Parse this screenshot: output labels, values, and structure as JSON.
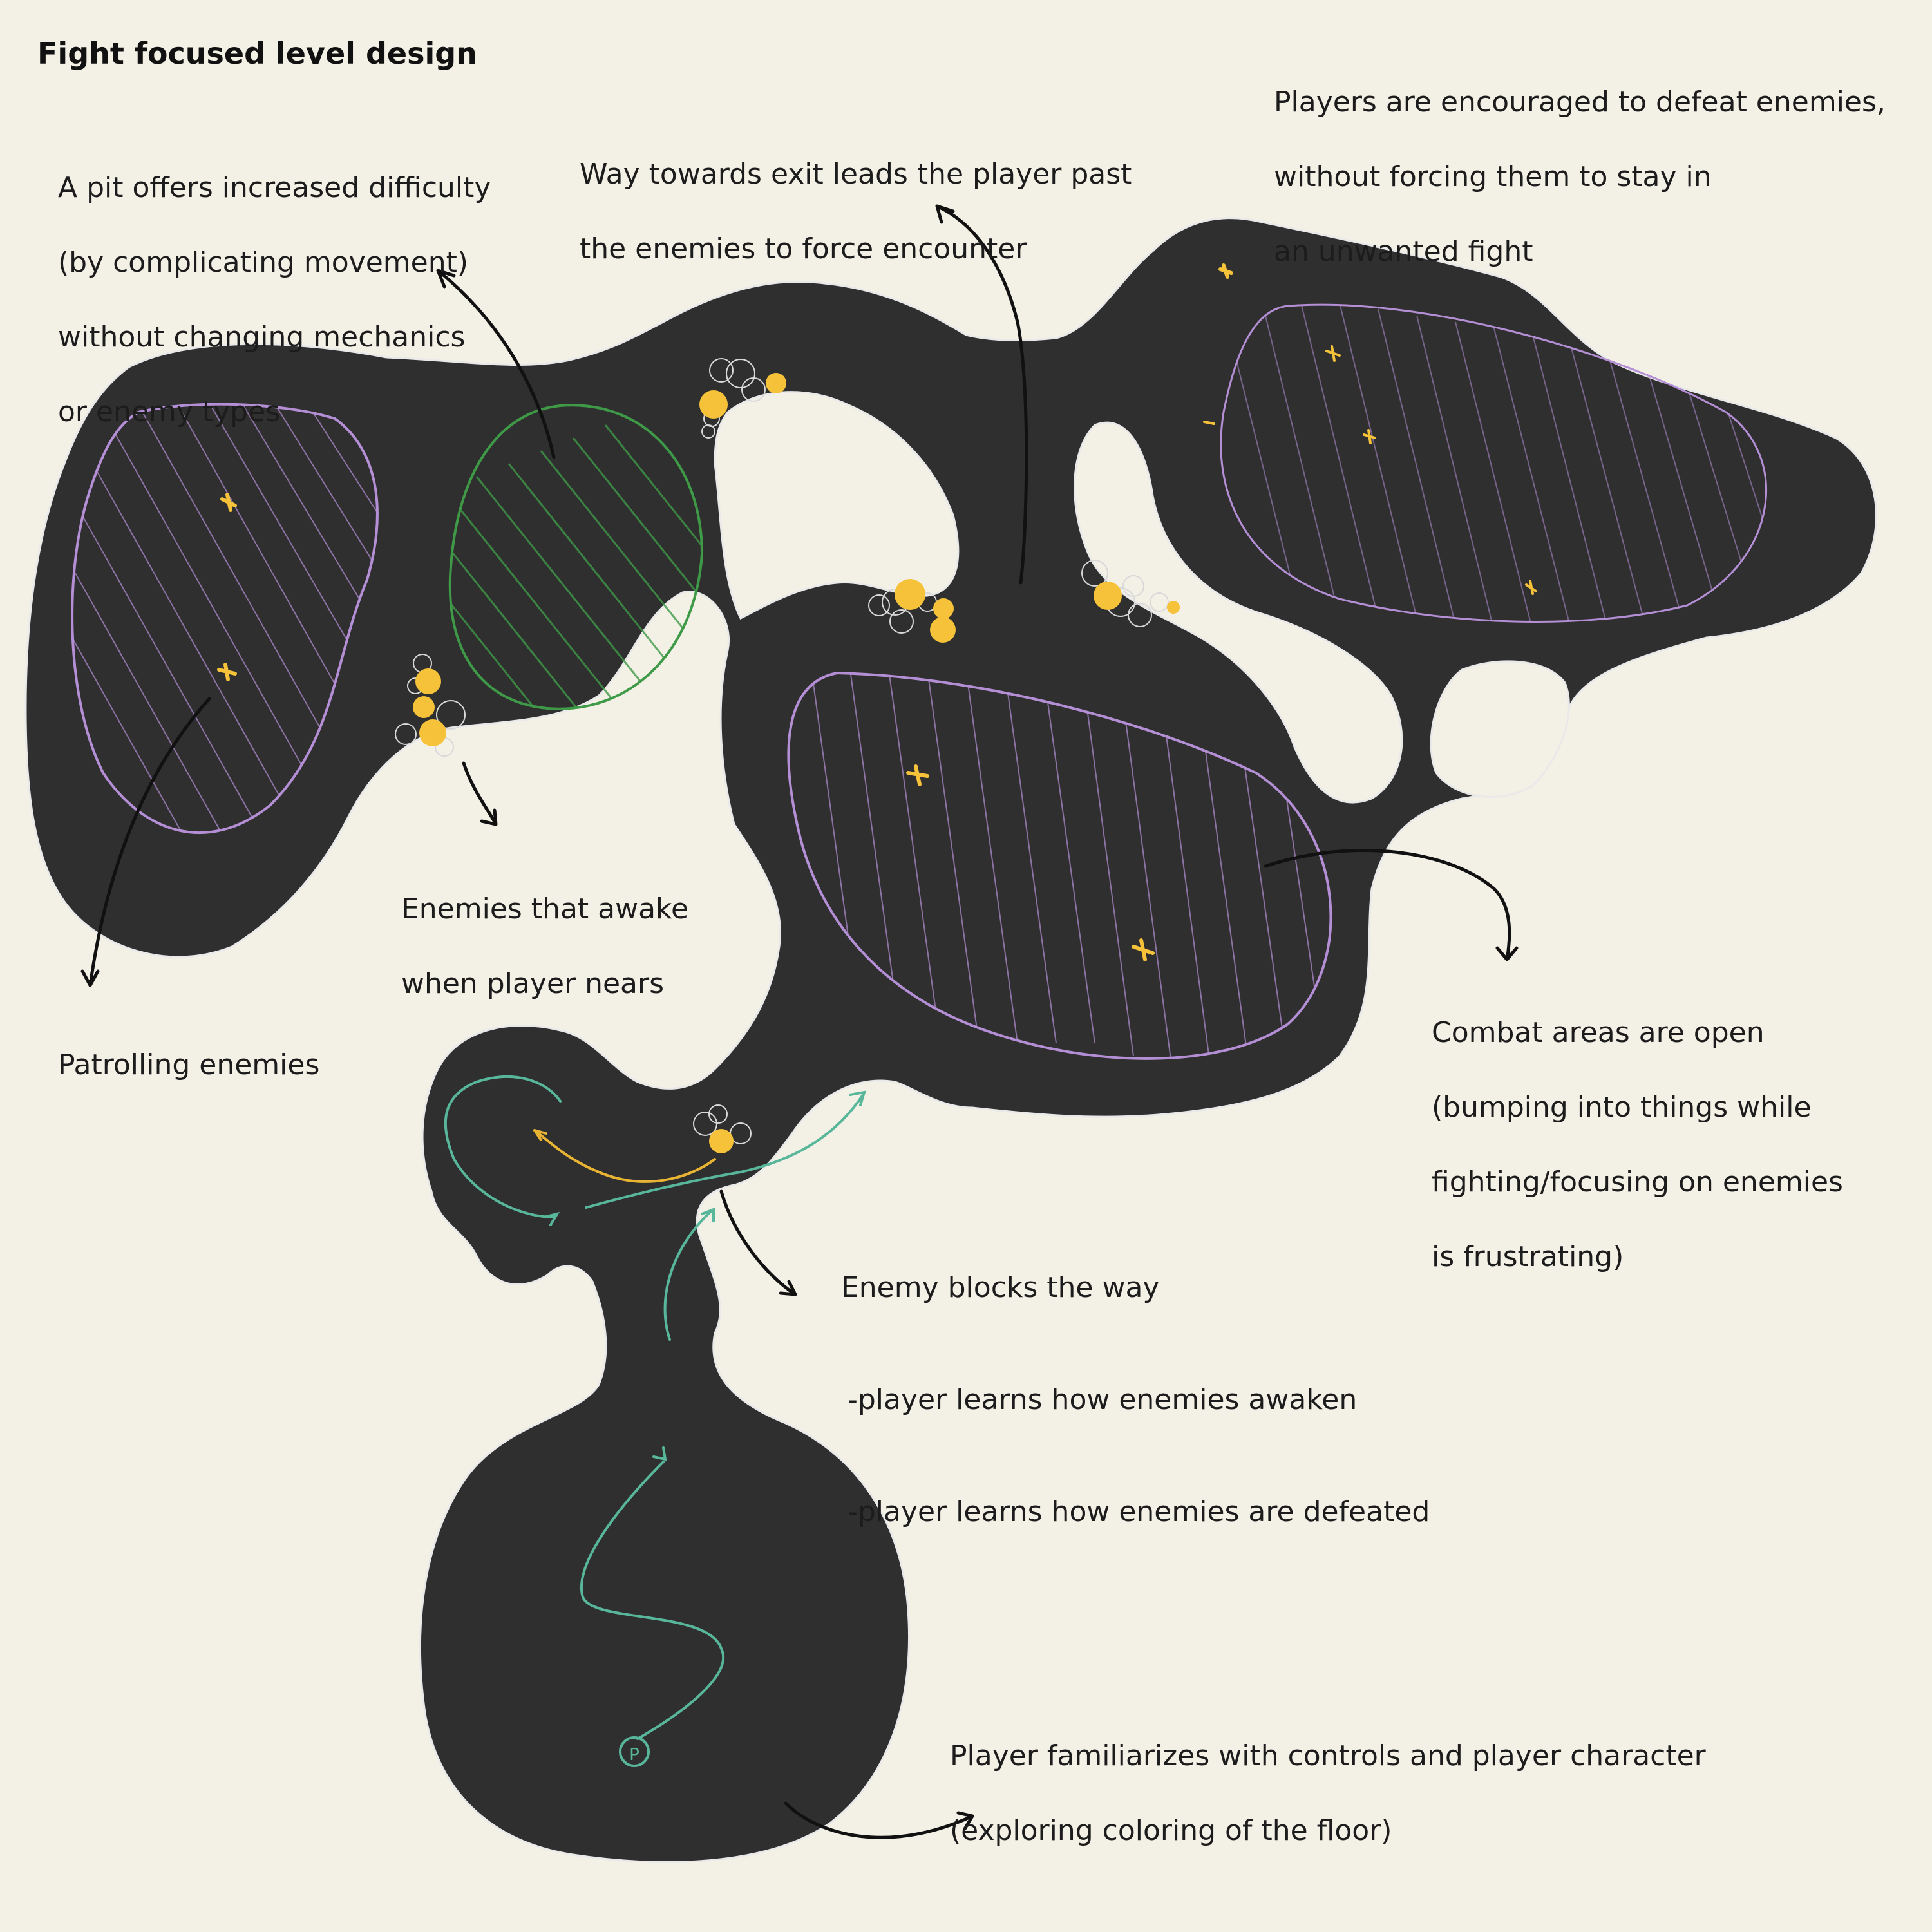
{
  "title": "Fight focused level design",
  "notes": {
    "pit": [
      "A pit offers increased difficulty",
      "(by complicating movement)",
      "without changing mechanics",
      "or enemy types"
    ],
    "exit": [
      "Way towards exit leads the player past",
      "the enemies to force encounter"
    ],
    "encourage": [
      "Players are encouraged to defeat enemies,",
      "without forcing them to stay in",
      "an unwanted fight"
    ],
    "awake": [
      "Enemies that awake",
      "when player nears"
    ],
    "patrol": [
      "Patrolling enemies"
    ],
    "combat": [
      "Combat areas are open",
      "(bumping into things while",
      "fighting/focusing on enemies",
      "is frustrating)"
    ],
    "blocks": {
      "heading": "Enemy blocks the way",
      "points": [
        "-player learns how enemies awaken",
        "-player learns how enemies are defeated"
      ]
    },
    "familiarize": [
      "Player familiarizes with controls and player character",
      "(exploring coloring of the floor)"
    ]
  },
  "player_marker": "P",
  "colors": {
    "background": "#f3f0e6",
    "floor": "#2f2f2f",
    "floor_outline": "#e9e9e9",
    "combat_zone": "#b58fd6",
    "pit": "#3f9a48",
    "enemy": "#f6c23a",
    "player_path": "#58b79b",
    "enemy_path": "#e9b433",
    "arrow": "#111111"
  },
  "legend_icons": [
    "patrolling-enemy-icon",
    "sleeping-enemy-icon",
    "player-start-icon"
  ]
}
